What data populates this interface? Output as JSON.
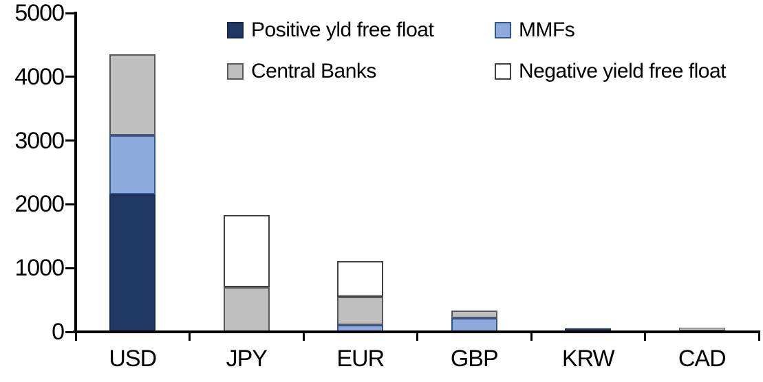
{
  "chart_data": {
    "type": "bar",
    "stacked": true,
    "title": "",
    "xlabel": "",
    "ylabel": "",
    "categories": [
      "USD",
      "JPY",
      "EUR",
      "GBP",
      "KRW",
      "CAD"
    ],
    "series": [
      {
        "name": "Positive yld free float",
        "color": "#1F3864",
        "border": "#17284A",
        "values": [
          2150,
          0,
          0,
          0,
          50,
          25
        ]
      },
      {
        "name": "MMFs",
        "color": "#8EA9DB",
        "border": "#2F5597",
        "values": [
          930,
          0,
          110,
          220,
          0,
          0
        ]
      },
      {
        "name": "Central Banks",
        "color": "#BFBFBF",
        "border": "#595959",
        "values": [
          1270,
          705,
          440,
          115,
          0,
          45
        ]
      },
      {
        "name": "Negative yield free float",
        "color": "#FFFFFF",
        "border": "#404040",
        "values": [
          0,
          1130,
          560,
          0,
          0,
          0
        ]
      }
    ],
    "totals": {
      "USD": 4350,
      "JPY": 1835,
      "EUR": 1110,
      "GBP": 335,
      "KRW": 50,
      "CAD": 70
    },
    "ylim": [
      0,
      5000
    ],
    "yticks": [
      0,
      1000,
      2000,
      3000,
      4000,
      5000
    ],
    "grid": false,
    "legend_position": "top",
    "axis_color": "#000000",
    "background": "#FFFFFF"
  }
}
